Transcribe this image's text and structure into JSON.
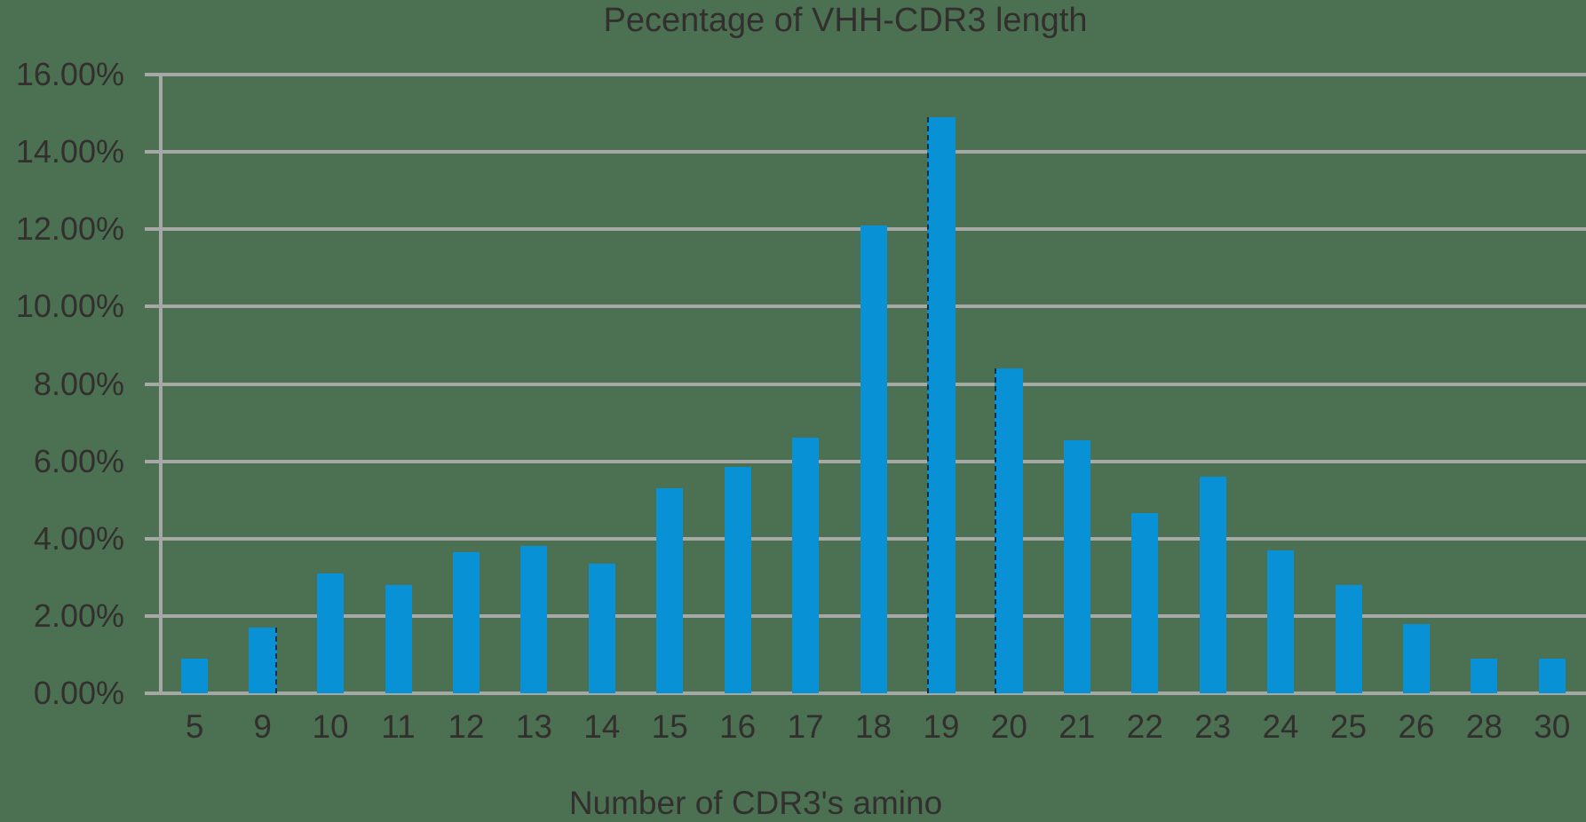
{
  "title": "Pecentage of VHH-CDR3 length",
  "x_axis_title": "Number of CDR3's amino",
  "colors": {
    "background": "#4B7152",
    "bar": "#0991D5",
    "gridline": "#A6A8A6",
    "axis": "#A6A8A6",
    "text": "#332F2E"
  },
  "y_axis": {
    "tick_labels": [
      "16.00%",
      "14.00%",
      "12.00%",
      "10.00%",
      "8.00%",
      "6.00%",
      "4.00%",
      "2.00%",
      "0.00%"
    ],
    "min": 0,
    "max": 16,
    "step": 2
  },
  "chart_data": {
    "type": "bar",
    "title": "Pecentage of VHH-CDR3 length",
    "xlabel": "Number of CDR3's amino",
    "ylabel": "",
    "ylim": [
      0,
      16
    ],
    "y_tick_format": "percent-2-decimals",
    "grid": "horizontal",
    "legend": "none",
    "unit": "%",
    "categories": [
      "5",
      "9",
      "10",
      "11",
      "12",
      "13",
      "14",
      "15",
      "16",
      "17",
      "18",
      "19",
      "20",
      "21",
      "22",
      "23",
      "24",
      "25",
      "26",
      "28",
      "30"
    ],
    "values": [
      0.9,
      1.7,
      3.1,
      2.8,
      3.65,
      3.8,
      3.35,
      5.3,
      5.85,
      6.6,
      12.1,
      14.9,
      8.4,
      6.55,
      4.65,
      5.6,
      3.7,
      2.8,
      1.8,
      0.9,
      0.9
    ]
  },
  "artifacts": {
    "dashed_bar_edges": [
      {
        "category": "9",
        "edge": "right"
      },
      {
        "category": "19",
        "edge": "left"
      },
      {
        "category": "20",
        "edge": "left"
      }
    ]
  }
}
